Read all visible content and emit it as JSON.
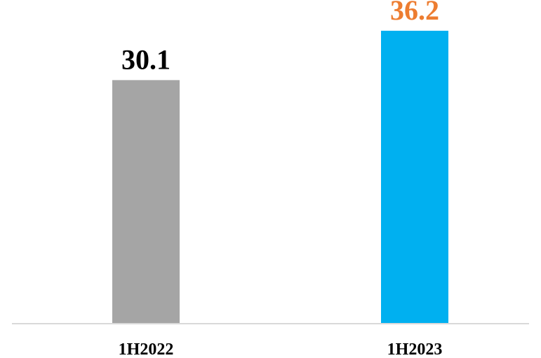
{
  "chart_data": {
    "type": "bar",
    "categories": [
      "1H2022",
      "1H2023"
    ],
    "values": [
      30.1,
      36.2
    ],
    "data_labels": [
      "30.1",
      "36.2"
    ],
    "title": "",
    "xlabel": "",
    "ylabel": "",
    "ylim": [
      0,
      40
    ],
    "grid": false,
    "legend": "none",
    "bar_colors": [
      "#A5A5A5",
      "#00B0F0"
    ],
    "label_colors": [
      "#000000",
      "#ED7D31"
    ],
    "axis_color": "#D9D9D9"
  }
}
